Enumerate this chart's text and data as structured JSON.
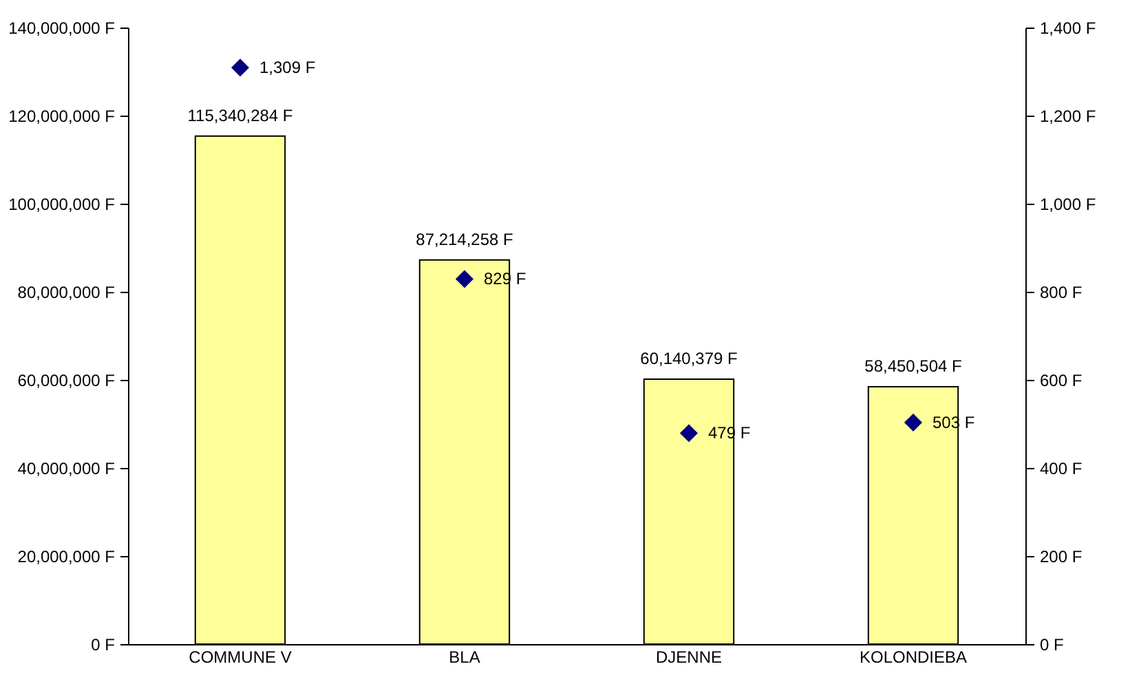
{
  "chart_data": {
    "type": "bar",
    "categories": [
      "COMMUNE V",
      "BLA",
      "DJENNE",
      "KOLONDIEBA"
    ],
    "series": [
      {
        "color": "#ffff99",
        "values": [
          115340284,
          87214258,
          60140379,
          58450504
        ],
        "value_labels": [
          "115,340,284 F",
          "87,214,258 F",
          "60,140,379 F",
          "58,450,504 F"
        ]
      },
      {
        "type": "scatter",
        "axis": "y2",
        "color": "#000080",
        "values": [
          1309,
          829,
          479,
          503
        ],
        "value_labels": [
          "1,309 F",
          "829 F",
          "479 F",
          "503 F"
        ]
      }
    ],
    "ylim": [
      0,
      140000000
    ],
    "yticks": [
      {
        "value": 0,
        "label": "0 F"
      },
      {
        "value": 20000000,
        "label": "20,000,000 F"
      },
      {
        "value": 40000000,
        "label": "40,000,000 F"
      },
      {
        "value": 60000000,
        "label": "60,000,000 F"
      },
      {
        "value": 80000000,
        "label": "80,000,000 F"
      },
      {
        "value": 100000000,
        "label": "100,000,000 F"
      },
      {
        "value": 120000000,
        "label": "120,000,000 F"
      },
      {
        "value": 140000000,
        "label": "140,000,000 F"
      }
    ],
    "y2lim": [
      0,
      1400
    ],
    "y2ticks": [
      {
        "value": 0,
        "label": "0 F"
      },
      {
        "value": 200,
        "label": "200 F"
      },
      {
        "value": 400,
        "label": "400 F"
      },
      {
        "value": 600,
        "label": "600 F"
      },
      {
        "value": 800,
        "label": "800 F"
      },
      {
        "value": 1000,
        "label": "1,000 F"
      },
      {
        "value": 1200,
        "label": "1,200 F"
      },
      {
        "value": 1400,
        "label": "1,400 F"
      }
    ],
    "marker": "diamond",
    "grid": false
  }
}
